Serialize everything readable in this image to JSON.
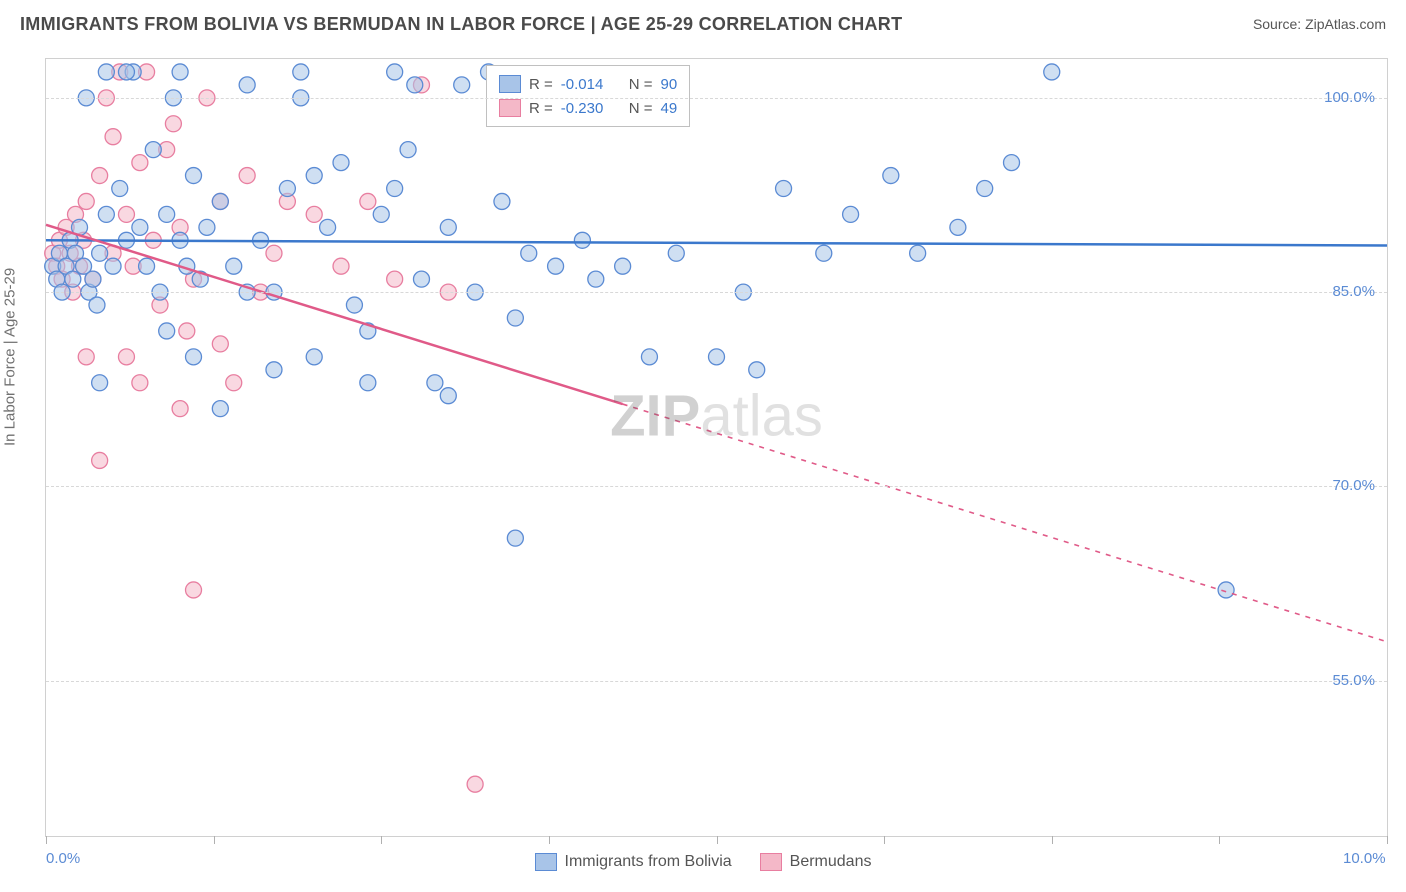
{
  "title": "IMMIGRANTS FROM BOLIVIA VS BERMUDAN IN LABOR FORCE | AGE 25-29 CORRELATION CHART",
  "source_prefix": "Source: ",
  "source_name": "ZipAtlas.com",
  "ylabel": "In Labor Force | Age 25-29",
  "watermark_a": "ZIP",
  "watermark_b": "atlas",
  "chart": {
    "type": "scatter",
    "xlim": [
      0.0,
      10.0
    ],
    "ylim": [
      43.0,
      103.0
    ],
    "x_ticks": [
      0.0,
      1.25,
      2.5,
      3.75,
      5.0,
      6.25,
      7.5,
      8.75,
      10.0
    ],
    "x_tick_labels_shown": {
      "0": "0.0%",
      "8": "10.0%"
    },
    "y_ticks": [
      55.0,
      70.0,
      85.0,
      100.0
    ],
    "y_tick_labels": [
      "55.0%",
      "70.0%",
      "85.0%",
      "100.0%"
    ],
    "grid_color": "#d8d8d8",
    "background_color": "#ffffff",
    "marker_radius": 8,
    "marker_opacity": 0.55,
    "series": [
      {
        "name": "Immigrants from Bolivia",
        "legend_name": "Immigrants from Bolivia",
        "fill": "#a8c4e8",
        "stroke": "#5b8bd4",
        "line_color": "#3b78cc",
        "R": "-0.014",
        "N": "90",
        "trend": {
          "x1": 0.0,
          "y1": 89.0,
          "x2": 10.0,
          "y2": 88.6,
          "solid_until_x": 10.0
        },
        "points": [
          [
            0.05,
            87
          ],
          [
            0.08,
            86
          ],
          [
            0.1,
            88
          ],
          [
            0.12,
            85
          ],
          [
            0.15,
            87
          ],
          [
            0.18,
            89
          ],
          [
            0.2,
            86
          ],
          [
            0.22,
            88
          ],
          [
            0.25,
            90
          ],
          [
            0.28,
            87
          ],
          [
            0.3,
            100
          ],
          [
            0.32,
            85
          ],
          [
            0.35,
            86
          ],
          [
            0.38,
            84
          ],
          [
            0.4,
            88
          ],
          [
            0.45,
            91
          ],
          [
            0.5,
            87
          ],
          [
            0.55,
            93
          ],
          [
            0.6,
            89
          ],
          [
            0.65,
            102
          ],
          [
            0.7,
            90
          ],
          [
            0.75,
            87
          ],
          [
            0.8,
            96
          ],
          [
            0.85,
            85
          ],
          [
            0.9,
            91
          ],
          [
            0.95,
            100
          ],
          [
            1.0,
            89
          ],
          [
            1.05,
            87
          ],
          [
            1.1,
            94
          ],
          [
            1.15,
            86
          ],
          [
            1.2,
            90
          ],
          [
            1.3,
            92
          ],
          [
            1.4,
            87
          ],
          [
            1.5,
            101
          ],
          [
            1.6,
            89
          ],
          [
            1.7,
            85
          ],
          [
            1.8,
            93
          ],
          [
            1.9,
            100
          ],
          [
            2.0,
            80
          ],
          [
            2.1,
            90
          ],
          [
            2.2,
            95
          ],
          [
            2.3,
            84
          ],
          [
            2.4,
            82
          ],
          [
            2.5,
            91
          ],
          [
            2.6,
            93
          ],
          [
            2.7,
            96
          ],
          [
            2.75,
            101
          ],
          [
            2.8,
            86
          ],
          [
            2.9,
            78
          ],
          [
            3.0,
            90
          ],
          [
            3.1,
            101
          ],
          [
            3.2,
            85
          ],
          [
            3.3,
            102
          ],
          [
            3.4,
            92
          ],
          [
            3.5,
            83
          ],
          [
            3.6,
            88
          ],
          [
            3.8,
            87
          ],
          [
            4.0,
            89
          ],
          [
            4.1,
            86
          ],
          [
            4.3,
            87
          ],
          [
            4.5,
            80
          ],
          [
            3.5,
            66
          ],
          [
            4.7,
            88
          ],
          [
            5.0,
            80
          ],
          [
            5.2,
            85
          ],
          [
            5.3,
            79
          ],
          [
            5.5,
            93
          ],
          [
            5.8,
            88
          ],
          [
            6.0,
            91
          ],
          [
            6.3,
            94
          ],
          [
            6.5,
            88
          ],
          [
            6.8,
            90
          ],
          [
            7.0,
            93
          ],
          [
            7.2,
            95
          ],
          [
            7.5,
            102
          ],
          [
            8.8,
            62
          ],
          [
            1.0,
            102
          ],
          [
            0.6,
            102
          ],
          [
            0.45,
            102
          ],
          [
            1.9,
            102
          ],
          [
            2.4,
            78
          ],
          [
            1.3,
            76
          ],
          [
            1.7,
            79
          ],
          [
            0.9,
            82
          ],
          [
            0.4,
            78
          ],
          [
            3.0,
            77
          ],
          [
            2.0,
            94
          ],
          [
            2.6,
            102
          ],
          [
            1.5,
            85
          ],
          [
            1.1,
            80
          ]
        ]
      },
      {
        "name": "Bermudans",
        "legend_name": "Bermudans",
        "fill": "#f4b8c8",
        "stroke": "#e87ea0",
        "line_color": "#e05a88",
        "R": "-0.230",
        "N": "49",
        "trend": {
          "x1": 0.0,
          "y1": 90.2,
          "x2": 10.0,
          "y2": 58.0,
          "solid_until_x": 4.3
        },
        "points": [
          [
            0.05,
            88
          ],
          [
            0.08,
            87
          ],
          [
            0.1,
            89
          ],
          [
            0.12,
            86
          ],
          [
            0.15,
            90
          ],
          [
            0.18,
            88
          ],
          [
            0.2,
            85
          ],
          [
            0.22,
            91
          ],
          [
            0.25,
            87
          ],
          [
            0.28,
            89
          ],
          [
            0.3,
            92
          ],
          [
            0.35,
            86
          ],
          [
            0.4,
            94
          ],
          [
            0.45,
            100
          ],
          [
            0.5,
            88
          ],
          [
            0.55,
            102
          ],
          [
            0.6,
            91
          ],
          [
            0.65,
            87
          ],
          [
            0.7,
            95
          ],
          [
            0.75,
            102
          ],
          [
            0.8,
            89
          ],
          [
            0.85,
            84
          ],
          [
            0.9,
            96
          ],
          [
            0.95,
            98
          ],
          [
            1.0,
            90
          ],
          [
            1.05,
            82
          ],
          [
            1.1,
            86
          ],
          [
            1.2,
            100
          ],
          [
            1.3,
            92
          ],
          [
            1.4,
            78
          ],
          [
            1.5,
            94
          ],
          [
            1.6,
            85
          ],
          [
            1.7,
            88
          ],
          [
            1.8,
            92
          ],
          [
            2.0,
            91
          ],
          [
            2.2,
            87
          ],
          [
            2.4,
            92
          ],
          [
            2.6,
            86
          ],
          [
            2.8,
            101
          ],
          [
            3.0,
            85
          ],
          [
            0.6,
            80
          ],
          [
            0.4,
            72
          ],
          [
            1.1,
            62
          ],
          [
            0.3,
            80
          ],
          [
            0.7,
            78
          ],
          [
            1.0,
            76
          ],
          [
            1.3,
            81
          ],
          [
            3.2,
            47
          ],
          [
            0.5,
            97
          ]
        ]
      }
    ]
  },
  "stats_legend": {
    "r_label": "R =",
    "n_label": "N ="
  },
  "colors": {
    "title": "#4a4a4a",
    "axis_label": "#707070",
    "tick_label": "#5b8bd4",
    "value_text": "#3b78cc"
  }
}
